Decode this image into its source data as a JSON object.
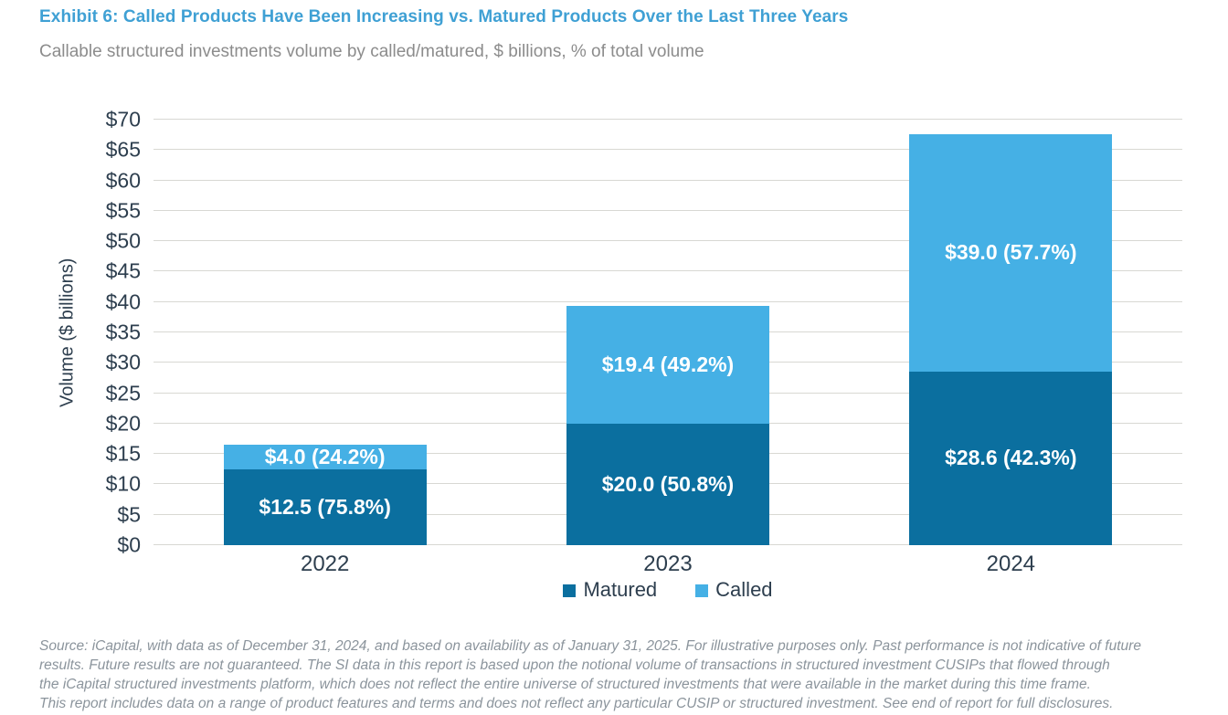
{
  "header": {
    "title": "Exhibit 6: Called Products Have Been Increasing vs. Matured Products Over the Last Three Years",
    "subtitle": "Callable structured investments volume by called/matured, $ billions, % of total volume"
  },
  "chart_data": {
    "type": "bar",
    "stacked": true,
    "categories": [
      "2022",
      "2023",
      "2024"
    ],
    "series": [
      {
        "name": "Matured",
        "color": "#0b6f9f",
        "values": [
          12.5,
          20.0,
          28.6
        ],
        "labels": [
          "$12.5 (75.8%)",
          "$20.0 (50.8%)",
          "$28.6 (42.3%)"
        ]
      },
      {
        "name": "Called",
        "color": "#45b0e5",
        "values": [
          4.0,
          19.4,
          39.0
        ],
        "labels": [
          "$4.0 (24.2%)",
          "$19.4 (49.2%)",
          "$39.0 (57.7%)"
        ]
      }
    ],
    "totals": [
      16.5,
      39.4,
      67.6
    ],
    "ylabel": "Volume ($ billions)",
    "ylim": [
      0,
      70
    ],
    "ytick_step": 5,
    "ytick_prefix": "$",
    "grid": true,
    "legend_position": "bottom"
  },
  "footer": {
    "source_lines": [
      "Source: iCapital, with data as of December 31, 2024, and based on availability as of January 31, 2025. For illustrative purposes only. Past performance is not indicative of future",
      "results. Future results are not guaranteed. The SI data in this report is based upon the notional volume of transactions in structured investment CUSIPs that flowed through",
      "the iCapital structured investments platform, which does not reflect the entire universe of structured investments that were available in the market during this time frame.",
      "This report includes data on a range of product features and terms and does not reflect any particular CUSIP or structured investment. See end of report for full disclosures."
    ]
  },
  "colors": {
    "title": "#3fa0d4",
    "subtitle": "#8c8c8c",
    "axis_text": "#2d3e4e",
    "gridline": "#d8d8d3",
    "matured": "#0b6f9f",
    "called": "#45b0e5",
    "source_text": "#8b949c"
  }
}
